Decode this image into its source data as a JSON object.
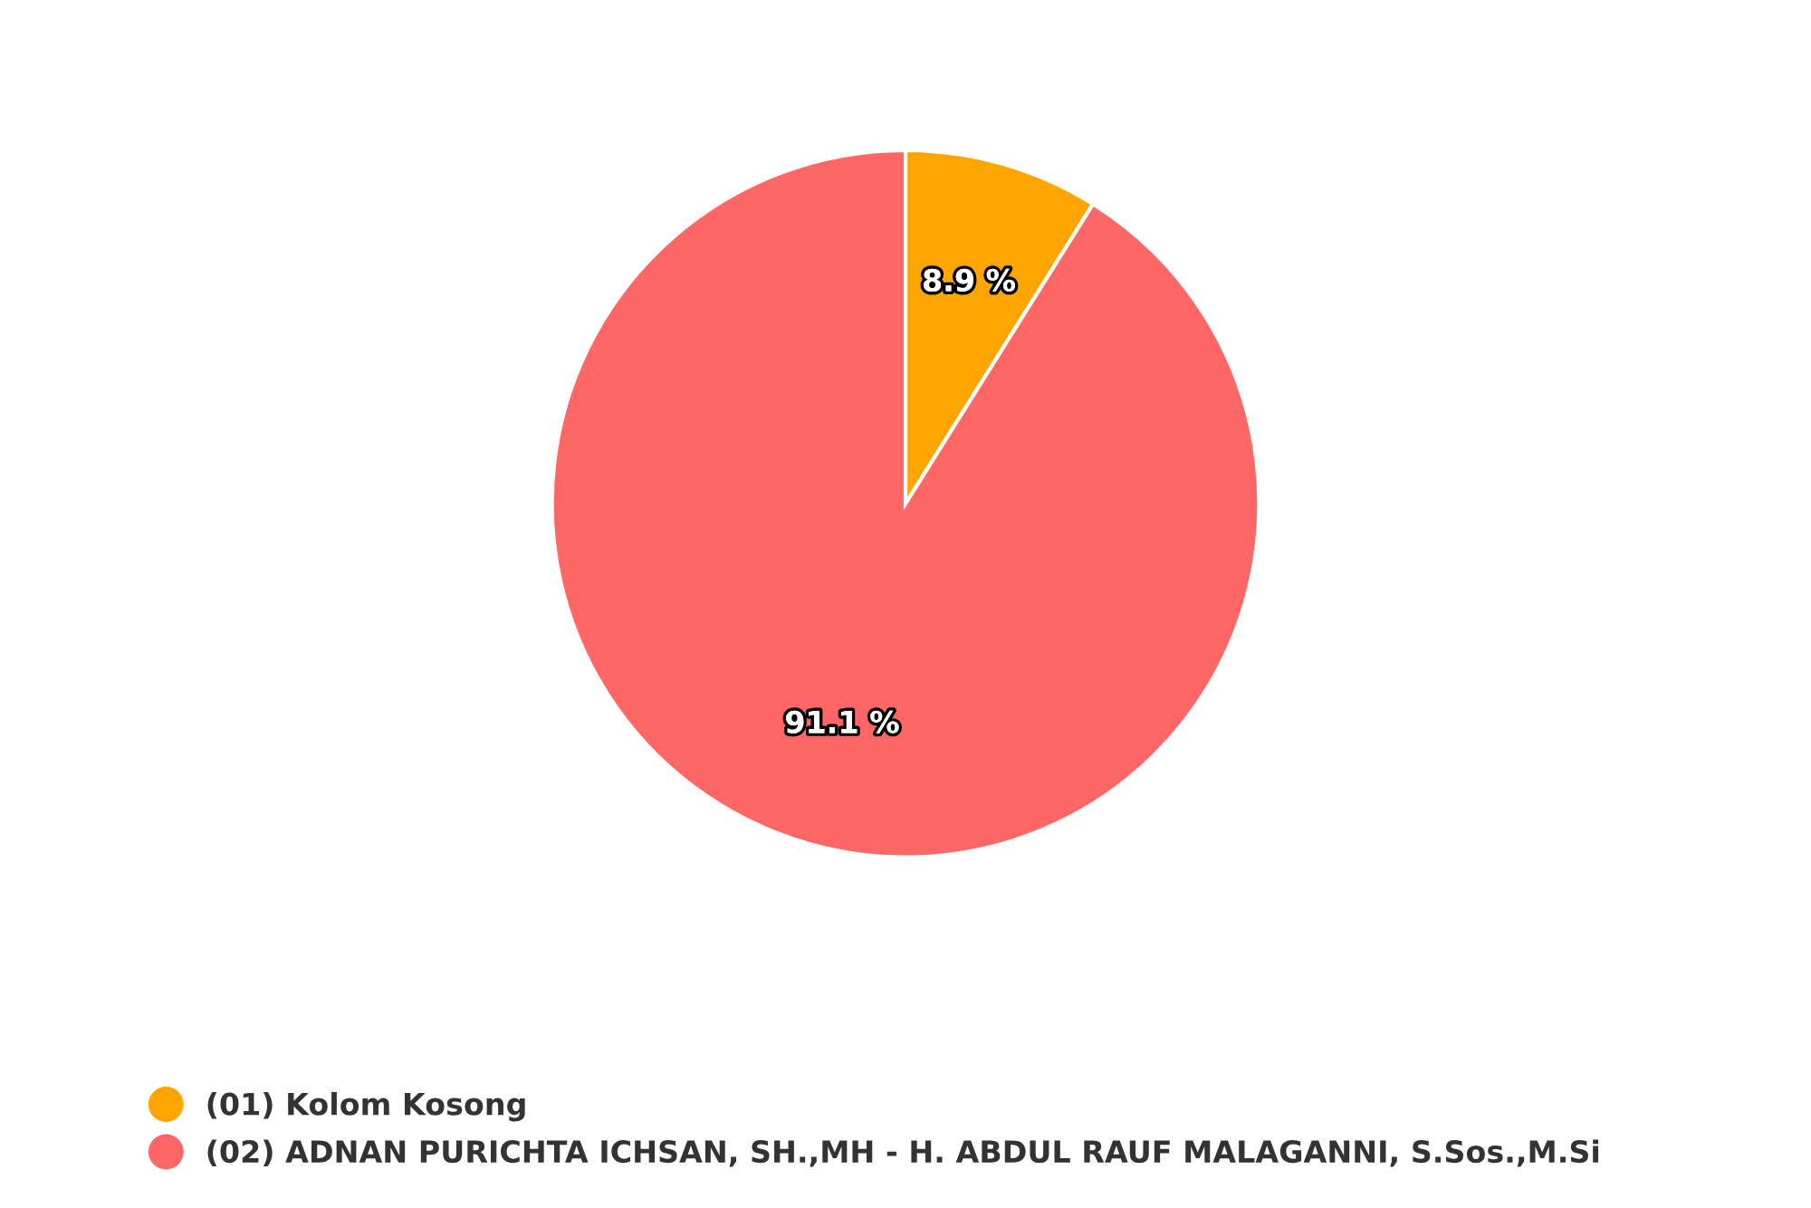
{
  "chart_data": {
    "type": "pie",
    "categories": [
      "(01) Kolom Kosong",
      "(02) ADNAN PURICHTA ICHSAN, SH.,MH - H. ABDUL RAUF MALAGANNI, S.Sos.,M.Si"
    ],
    "values": [
      8.9,
      91.1
    ],
    "colors": [
      "#ffa500",
      "#ff6666"
    ],
    "value_labels": [
      "8.9 %",
      "91.1 %"
    ],
    "legend": "bottom left"
  }
}
